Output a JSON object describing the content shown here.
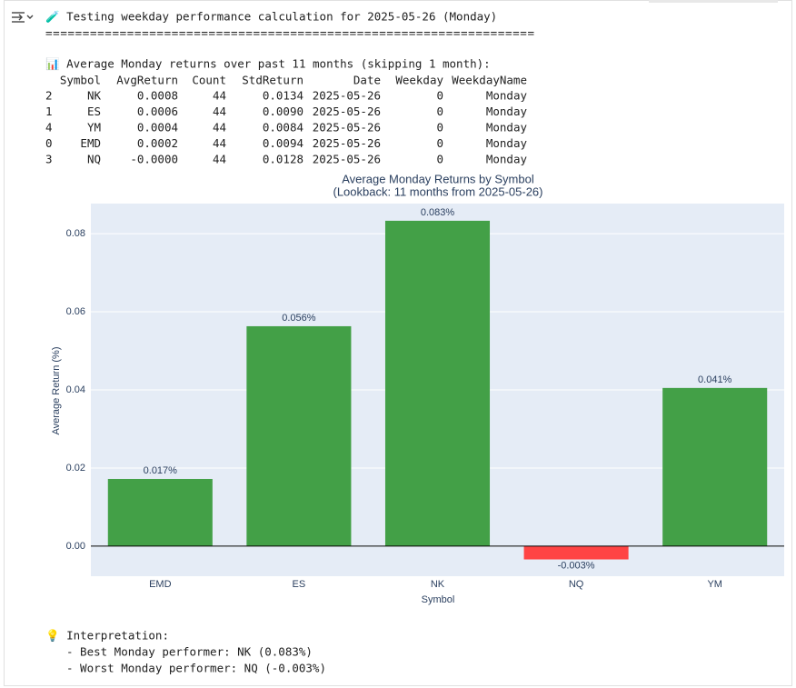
{
  "output": {
    "heading": "🧪 Testing weekday performance calculation for 2025-05-26 (Monday)",
    "rule": "==================================================================",
    "summary": "📊 Average Monday returns over past 11 months (skipping 1 month):",
    "interpretation": "💡 Interpretation:",
    "best": "- Best Monday performer: NK (0.083%)",
    "worst": "- Worst Monday performer: NQ (-0.003%)"
  },
  "table": {
    "columns": [
      "Symbol",
      "AvgReturn",
      "Count",
      "StdReturn",
      "Date",
      "Weekday",
      "WeekdayName"
    ],
    "index": [
      "2",
      "1",
      "4",
      "0",
      "3"
    ],
    "rows": [
      [
        "NK",
        "0.0008",
        "44",
        "0.0134",
        "2025-05-26",
        "0",
        "Monday"
      ],
      [
        "ES",
        "0.0006",
        "44",
        "0.0090",
        "2025-05-26",
        "0",
        "Monday"
      ],
      [
        "YM",
        "0.0004",
        "44",
        "0.0084",
        "2025-05-26",
        "0",
        "Monday"
      ],
      [
        "EMD",
        "0.0002",
        "44",
        "0.0094",
        "2025-05-26",
        "0",
        "Monday"
      ],
      [
        "NQ",
        "-0.0000",
        "44",
        "0.0128",
        "2025-05-26",
        "0",
        "Monday"
      ]
    ]
  },
  "chart_data": {
    "type": "bar",
    "title": [
      "Average Monday Returns by Symbol",
      "(Lookback: 11 months from 2025-05-26)"
    ],
    "x_label": "Symbol",
    "y_label": "Average Return (%)",
    "categories": [
      "EMD",
      "ES",
      "NK",
      "NQ",
      "YM"
    ],
    "values": [
      0.0172,
      0.0563,
      0.0833,
      -0.0034,
      0.0405
    ],
    "value_labels": [
      "0.017%",
      "0.056%",
      "0.083%",
      "-0.003%",
      "0.041%"
    ],
    "colors": [
      "#43a047",
      "#43a047",
      "#43a047",
      "#ff4444",
      "#43a047"
    ],
    "ylim": [
      -0.0077,
      0.0877
    ],
    "yticks": [
      {
        "value": 0,
        "label": "0.00"
      },
      0.02,
      0.04,
      0.06,
      0.08
    ],
    "grid": true
  }
}
